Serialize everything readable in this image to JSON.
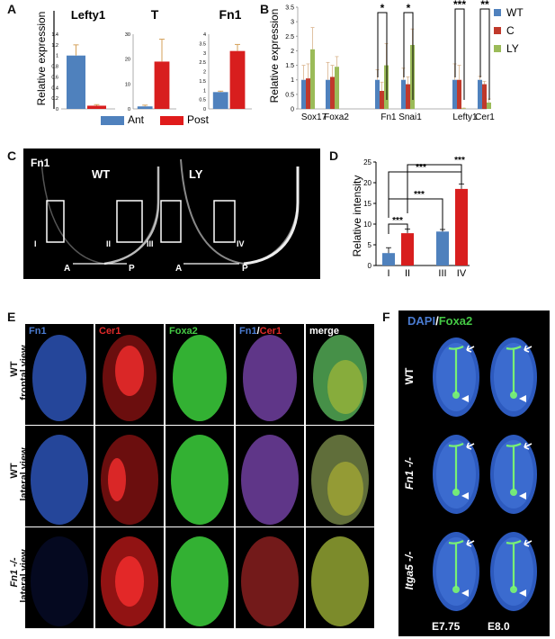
{
  "colors": {
    "blue": "#4f81bd",
    "red": "#d81e1e",
    "green": "#9bbb59",
    "black": "#000000"
  },
  "panels": {
    "a": "A",
    "b": "B",
    "c": "C",
    "d": "D",
    "e": "E",
    "f": "F"
  },
  "panelA": {
    "ylabel": "Relative expression",
    "legend": [
      "Ant",
      "Post"
    ],
    "charts": [
      {
        "title": "Lefty1",
        "ylim": [
          0,
          1.4
        ],
        "yticks": [
          "1.4",
          "1.2",
          "1",
          "0.8",
          "0.6",
          "0.4",
          "0.2",
          "0"
        ]
      },
      {
        "title": "T",
        "ylim": [
          0,
          30
        ],
        "yticks": [
          "30",
          "20",
          "10",
          "0"
        ]
      },
      {
        "title": "Fn1",
        "ylim": [
          0,
          4
        ],
        "yticks": [
          "4",
          "3.5",
          "3",
          "2.5",
          "2",
          "1.5",
          "1",
          "0.5",
          "0"
        ]
      }
    ]
  },
  "panelB": {
    "ylabel": "Relative expression",
    "yticks": [
      "3.5",
      "3",
      "2.5",
      "2",
      "1.5",
      "1",
      "0.5",
      "0"
    ],
    "legend": [
      "WT",
      "C",
      "LY"
    ],
    "stars": [
      "*",
      "*",
      "***",
      "**"
    ]
  },
  "panelC": {
    "marker": "Fn1",
    "wt": "WT",
    "ly": "LY",
    "rois": [
      "I",
      "II",
      "III",
      "IV"
    ],
    "a": "A",
    "p": "P"
  },
  "panelD": {
    "ylabel": "Relative intensity",
    "yticks": [
      "25",
      "20",
      "15",
      "10",
      "5",
      "0"
    ],
    "stars": [
      "***",
      "***",
      "***",
      "***"
    ]
  },
  "panelE": {
    "cols": [
      {
        "parts": [
          {
            "t": "Fn1",
            "c": "#4a7bd0"
          }
        ]
      },
      {
        "parts": [
          {
            "t": "Cer1",
            "c": "#e02a2a"
          }
        ]
      },
      {
        "parts": [
          {
            "t": "Foxa2",
            "c": "#44c944"
          }
        ]
      },
      {
        "parts": [
          {
            "t": "Fn1",
            "c": "#4a7bd0"
          },
          {
            "t": "/",
            "c": "#ffffff"
          },
          {
            "t": "Cer1",
            "c": "#e02a2a"
          }
        ]
      },
      {
        "parts": [
          {
            "t": "merge",
            "c": "#ffffff"
          }
        ]
      }
    ],
    "rows": [
      {
        "l1": "WT",
        "l2": "frontal view"
      },
      {
        "l1": "WT",
        "l2": "lateral view"
      },
      {
        "l1": "Fn1 -/-",
        "l2": "lateral view"
      }
    ]
  },
  "panelF": {
    "dapi": "DAPI",
    "slash": "/",
    "foxa2": "Foxa2",
    "rows": [
      "WT",
      "Fn1 -/-",
      "Itga5 -/-"
    ],
    "stages": [
      "E7.75",
      "E8.0"
    ]
  },
  "chart_data": [
    {
      "type": "bar",
      "panel": "A",
      "title": "Lefty1",
      "categories": [
        "Ant",
        "Post"
      ],
      "values": [
        1.0,
        0.06
      ],
      "errors": [
        0.2,
        0.02
      ],
      "ylabel": "Relative expression",
      "ylim": [
        0,
        1.4
      ]
    },
    {
      "type": "bar",
      "panel": "A",
      "title": "T",
      "categories": [
        "Ant",
        "Post"
      ],
      "values": [
        1.0,
        19.0
      ],
      "errors": [
        0.5,
        9.0
      ],
      "ylim": [
        0,
        30
      ]
    },
    {
      "type": "bar",
      "panel": "A",
      "title": "Fn1",
      "categories": [
        "Ant",
        "Post"
      ],
      "values": [
        0.9,
        3.1
      ],
      "errors": [
        0.05,
        0.35
      ],
      "ylim": [
        0,
        4
      ]
    },
    {
      "type": "bar",
      "panel": "B",
      "categories": [
        "Sox17",
        "Foxa2",
        "Fn1",
        "Snai1",
        "Lefty1",
        "Cer1"
      ],
      "ylabel": "Relative expression",
      "ylim": [
        0,
        3.5
      ],
      "series": [
        {
          "name": "WT",
          "values": [
            1.0,
            1.0,
            1.0,
            1.0,
            1.0,
            1.0
          ],
          "errors": [
            0.5,
            0.6,
            0.35,
            0.4,
            0.55,
            0.12
          ]
        },
        {
          "name": "C",
          "values": [
            1.05,
            1.1,
            0.62,
            0.85,
            1.0,
            0.85
          ],
          "errors": [
            0.5,
            0.4,
            0.3,
            0.25,
            0.5,
            0.1
          ]
        },
        {
          "name": "LY",
          "values": [
            2.05,
            1.45,
            1.5,
            2.2,
            0.02,
            0.22
          ],
          "errors": [
            0.75,
            0.35,
            0.75,
            0.55,
            0.01,
            0.12
          ]
        }
      ]
    },
    {
      "type": "bar",
      "panel": "D",
      "categories": [
        "I",
        "II",
        "III",
        "IV"
      ],
      "values": [
        3.0,
        7.8,
        8.2,
        18.5
      ],
      "errors": [
        1.3,
        1.0,
        0.5,
        1.2
      ],
      "ylabel": "Relative intensity",
      "ylim": [
        0,
        25
      ]
    }
  ]
}
